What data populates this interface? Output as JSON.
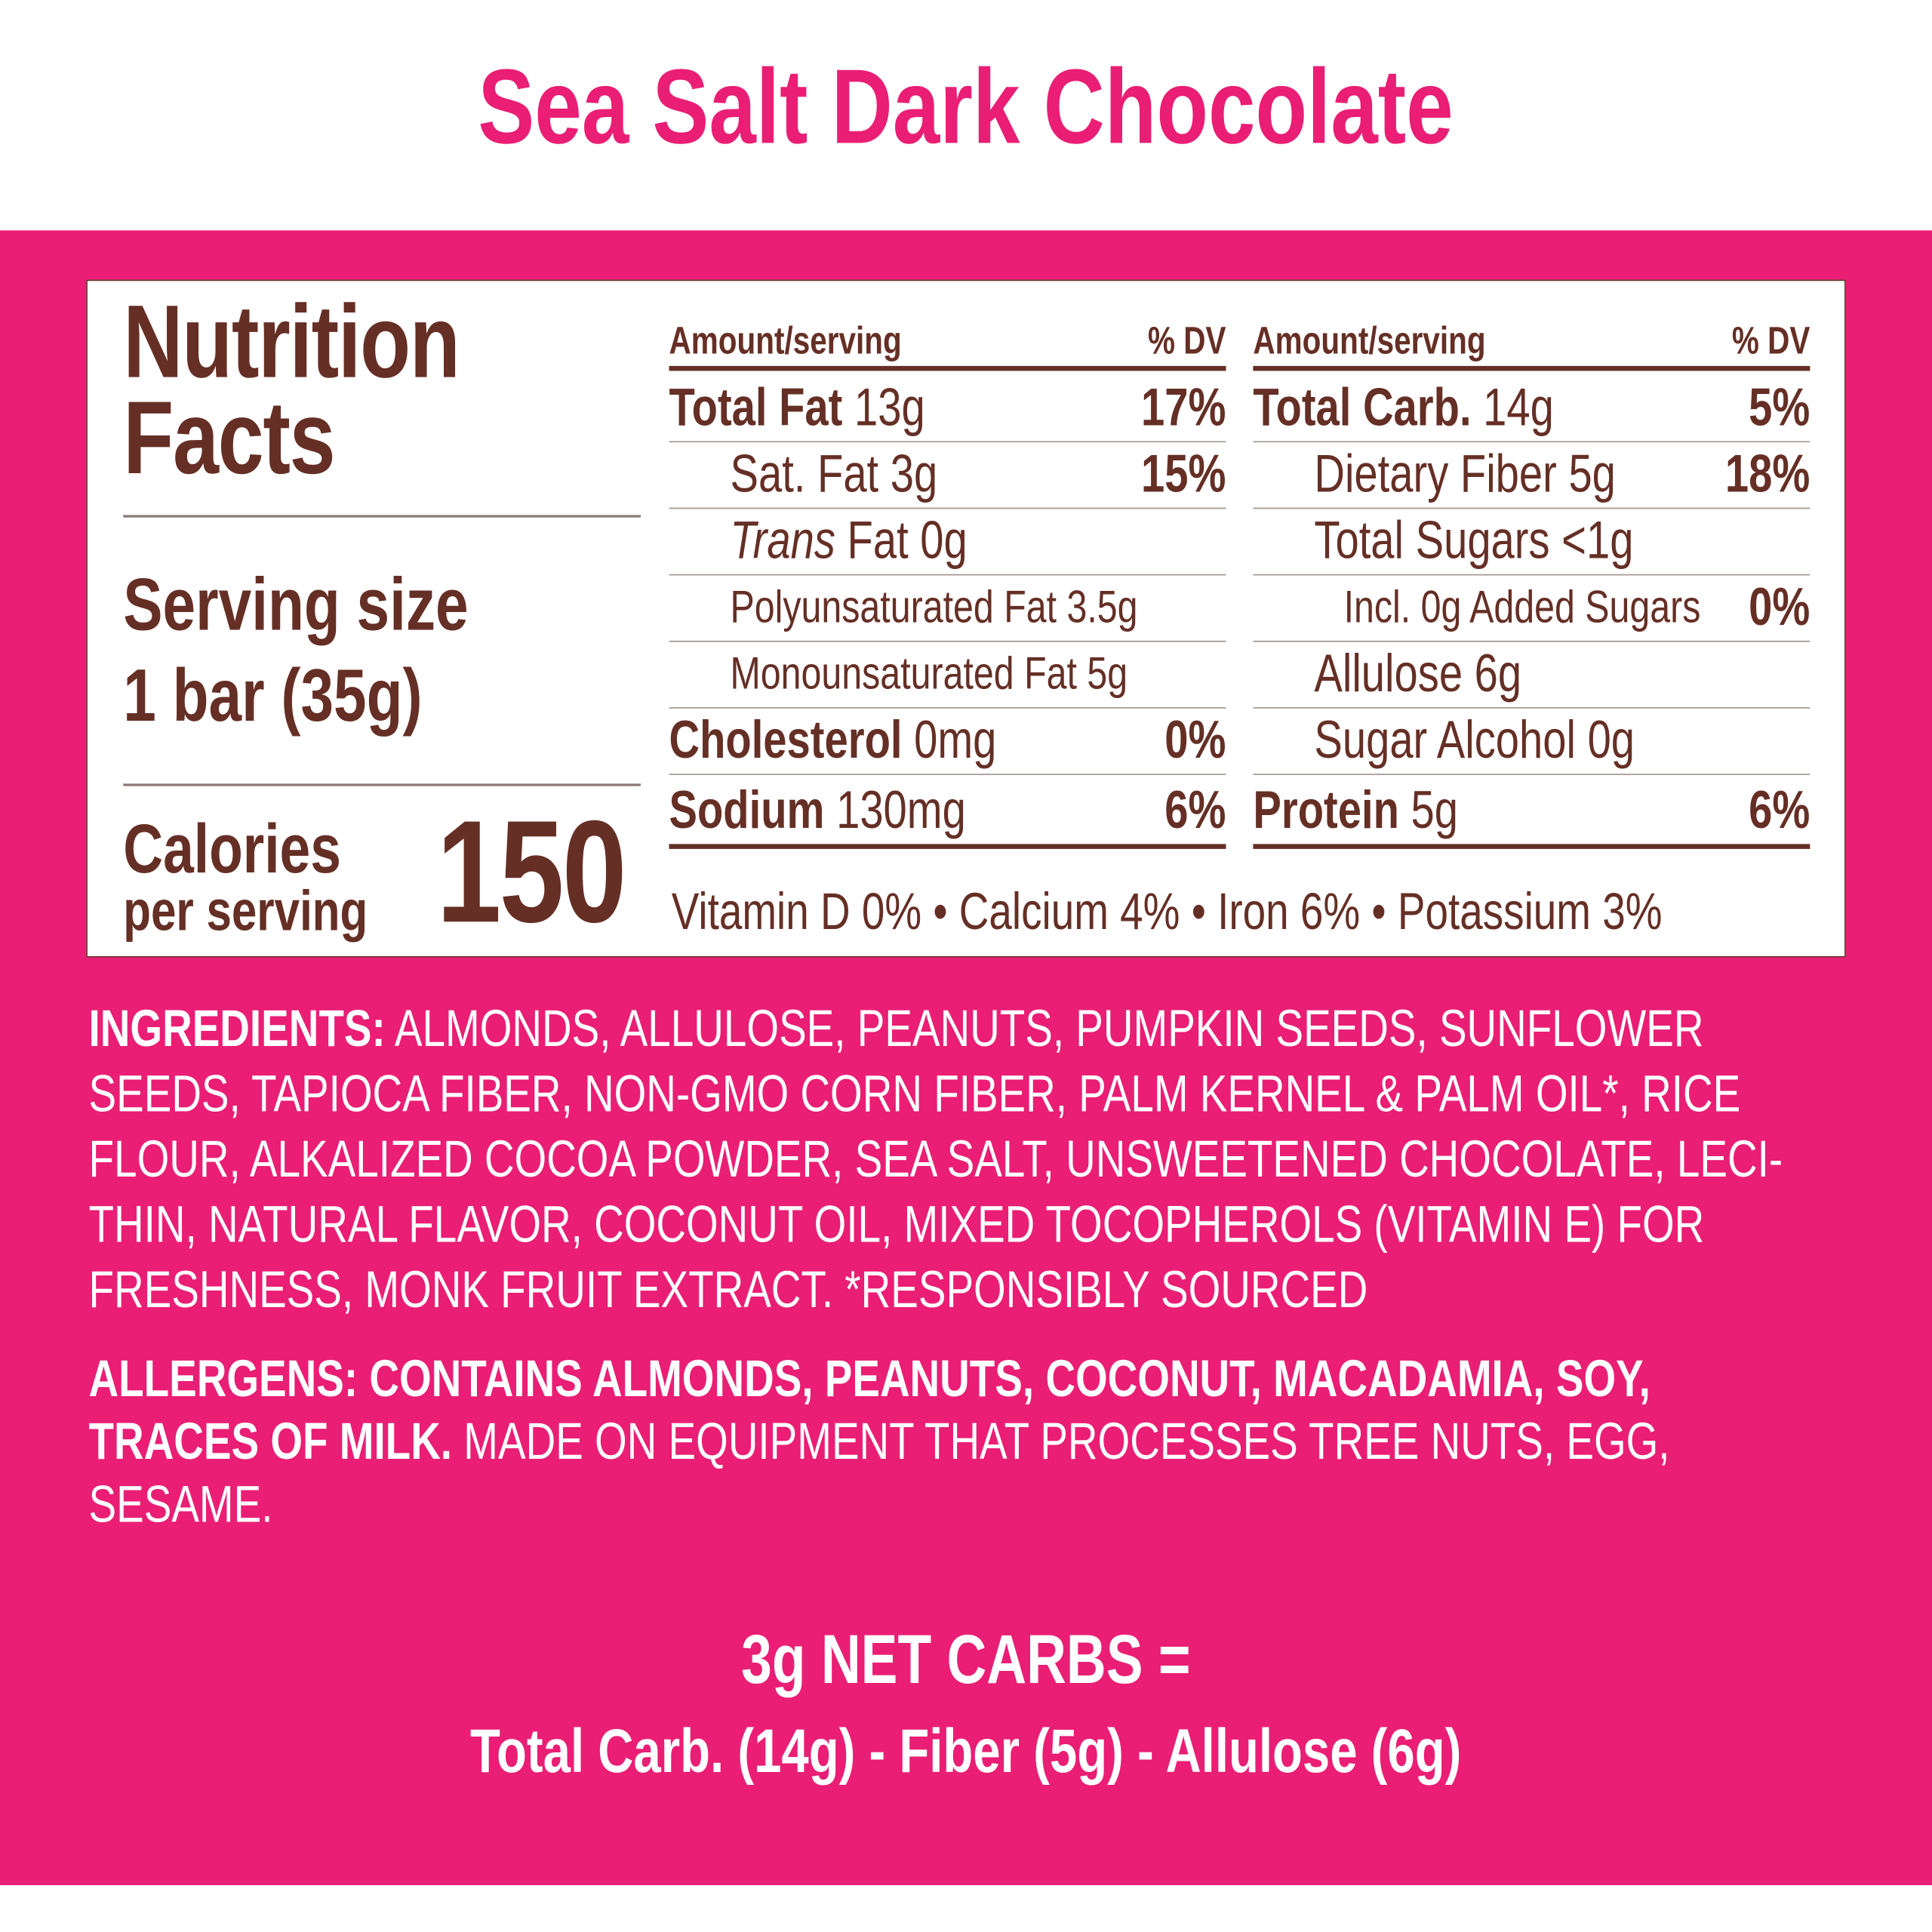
{
  "colors": {
    "accent": "#E91E74",
    "text": "#652F25",
    "background": "#FFFFFF"
  },
  "title": "Sea Salt Dark Chocolate",
  "panel": {
    "heading_line1": "Nutrition",
    "heading_line2": "Facts",
    "serving_label": "Serving size",
    "serving_value": "1 bar (35g)",
    "calories_label": "Calories",
    "calories_sub": "per serving",
    "calories_value": "150",
    "left_table": {
      "header_amount": "Amount/serving",
      "header_dv": "% DV",
      "rows": [
        {
          "name": "Total Fat",
          "amount": "13g",
          "dv": "17%"
        },
        {
          "name": "Sat. Fat",
          "amount": "3g",
          "dv": "15%"
        },
        {
          "name": "Trans",
          "amount": "Fat 0g",
          "dv": ""
        },
        {
          "name": "Polyunsaturated Fat 3.5g",
          "amount": "",
          "dv": ""
        },
        {
          "name": "Monounsaturated Fat 5g",
          "amount": "",
          "dv": ""
        },
        {
          "name": "Cholesterol",
          "amount": "0mg",
          "dv": "0%"
        },
        {
          "name": "Sodium",
          "amount": "130mg",
          "dv": "6%"
        }
      ]
    },
    "right_table": {
      "header_amount": "Amount/serving",
      "header_dv": "% DV",
      "rows": [
        {
          "name": "Total Carb.",
          "amount": "14g",
          "dv": "5%"
        },
        {
          "name": "Dietary Fiber 5g",
          "amount": "",
          "dv": "18%"
        },
        {
          "name": "Total Sugars <1g",
          "amount": "",
          "dv": ""
        },
        {
          "name": "Incl. 0g Added Sugars",
          "amount": "",
          "dv": "0%"
        },
        {
          "name": "Allulose 6g",
          "amount": "",
          "dv": ""
        },
        {
          "name": "Sugar Alcohol 0g",
          "amount": "",
          "dv": ""
        },
        {
          "name": "Protein",
          "amount": "5g",
          "dv": "6%"
        }
      ]
    },
    "vitamins": "Vitamin D 0% • Calcium 4% • Iron 6% • Potassium 3%"
  },
  "ingredients": {
    "label": "INGREDIENTS:",
    "lines": [
      " ALMONDS, ALLULOSE, PEANUTS, PUMPKIN SEEDS, SUNFLOWER",
      "SEEDS, TAPIOCA FIBER, NON-GMO CORN FIBER, PALM KERNEL & PALM OIL*, RICE",
      "FLOUR, ALKALIZED COCOA POWDER, SEA SALT, UNSWEETENED CHOCOLATE, LECI-",
      "THIN, NATURAL FLAVOR, COCONUT OIL, MIXED TOCOPHEROLS (VITAMIN E) FOR",
      "FRESHNESS, MONK FRUIT EXTRACT. *RESPONSIBLY SOURCED"
    ]
  },
  "allergens": {
    "bold_line1": "ALLERGENS: CONTAINS ALMONDS, PEANUTS, COCONUT, MACADAMIA, SOY,",
    "bold_line2": "TRACES OF MILK.",
    "line2_rest": " MADE ON EQUIPMENT THAT PROCESSES TREE NUTS, EGG,",
    "line3": "SESAME."
  },
  "net_carbs": {
    "headline": "3g NET CARBS =",
    "formula": "Total Carb. (14g) - Fiber (5g) - Allulose (6g)"
  }
}
